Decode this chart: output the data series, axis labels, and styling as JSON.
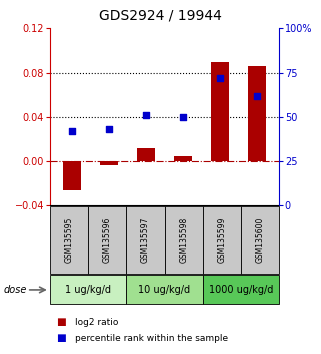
{
  "title": "GDS2924 / 19944",
  "samples": [
    "GSM135595",
    "GSM135596",
    "GSM135597",
    "GSM135598",
    "GSM135599",
    "GSM135600"
  ],
  "log2_ratio": [
    -0.026,
    -0.004,
    0.012,
    0.005,
    0.09,
    0.086
  ],
  "percentile_rank": [
    42,
    43,
    51,
    50,
    72,
    62
  ],
  "ylim_left": [
    -0.04,
    0.12
  ],
  "ylim_right": [
    0,
    100
  ],
  "yticks_left": [
    -0.04,
    0.0,
    0.04,
    0.08,
    0.12
  ],
  "yticks_right": [
    0,
    25,
    50,
    75,
    100
  ],
  "ytick_labels_right": [
    "0",
    "25",
    "50",
    "75",
    "100%"
  ],
  "dose_groups": [
    {
      "label": "1 ug/kg/d",
      "samples": [
        0,
        1
      ],
      "color": "#c8f0c0"
    },
    {
      "label": "10 ug/kg/d",
      "samples": [
        2,
        3
      ],
      "color": "#a0e090"
    },
    {
      "label": "1000 ug/kg/d",
      "samples": [
        4,
        5
      ],
      "color": "#58c858"
    }
  ],
  "bar_color": "#aa0000",
  "dot_color": "#0000cc",
  "bar_width": 0.5,
  "dot_size": 18,
  "dotted_lines": [
    0.04,
    0.08
  ],
  "sample_box_color": "#c8c8c8",
  "dose_label": "dose",
  "legend_log2": "log2 ratio",
  "legend_pct": "percentile rank within the sample",
  "title_fontsize": 10,
  "tick_fontsize": 7,
  "sample_fontsize": 5.5,
  "dose_fontsize": 7,
  "legend_fontsize": 6.5,
  "axis_color_left": "#cc0000",
  "axis_color_right": "#0000cc"
}
